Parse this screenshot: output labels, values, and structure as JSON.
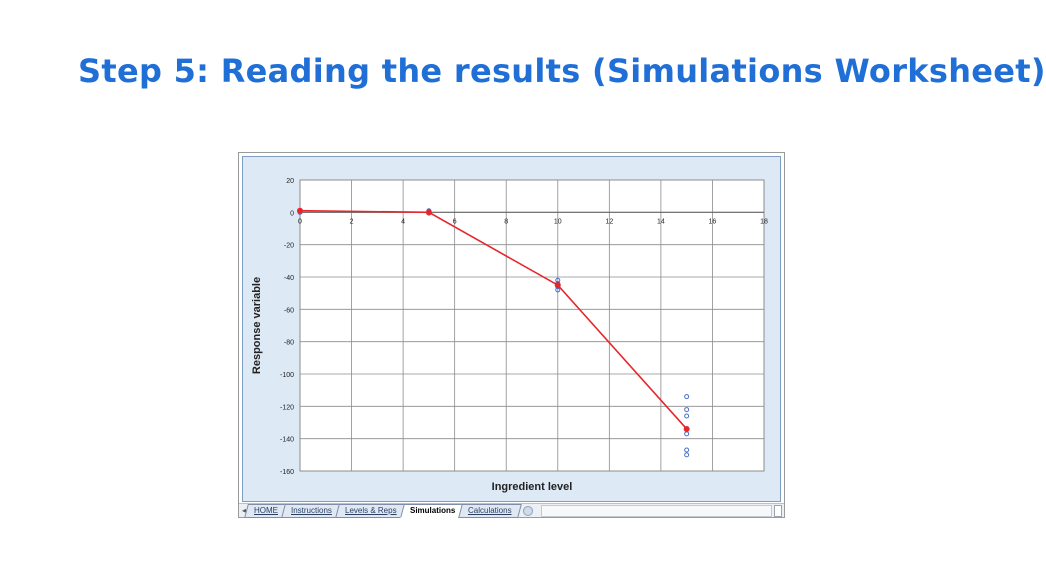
{
  "slide": {
    "title": "Step 5: Reading the results (Simulations Worksheet)"
  },
  "sheet_tabs": [
    {
      "label": "HOME"
    },
    {
      "label": "Instructions"
    },
    {
      "label": "Levels & Reps"
    },
    {
      "label": "Simulations"
    },
    {
      "label": "Calculations"
    }
  ],
  "active_tab": "Simulations",
  "chart_data": {
    "type": "scatter",
    "xlabel": "Ingredient level",
    "ylabel": "Response variable",
    "xlim": [
      0,
      18
    ],
    "ylim": [
      -160,
      20
    ],
    "x_ticks": [
      0,
      2,
      4,
      6,
      8,
      10,
      12,
      14,
      16,
      18
    ],
    "y_ticks": [
      20,
      0,
      -20,
      -40,
      -60,
      -80,
      -100,
      -120,
      -140,
      -160
    ],
    "grid": true,
    "x_tick_labels_position": "at y=0",
    "series": [
      {
        "kind": "points",
        "color": "#4a6fc9",
        "points": [
          [
            0,
            1
          ],
          [
            0,
            0.5
          ],
          [
            0,
            0
          ],
          [
            5,
            1
          ],
          [
            5,
            0.5
          ],
          [
            5,
            -0.5
          ],
          [
            10,
            -42
          ],
          [
            10,
            -44
          ],
          [
            10,
            -46
          ],
          [
            10,
            -48
          ],
          [
            15,
            -114
          ],
          [
            15,
            -122
          ],
          [
            15,
            -126
          ],
          [
            15,
            -137
          ],
          [
            15,
            -147
          ],
          [
            15,
            -150
          ]
        ]
      },
      {
        "kind": "line",
        "color": "#e8252a",
        "points": [
          [
            0,
            1
          ],
          [
            5,
            0
          ],
          [
            10,
            -45
          ],
          [
            15,
            -134
          ]
        ]
      }
    ]
  }
}
